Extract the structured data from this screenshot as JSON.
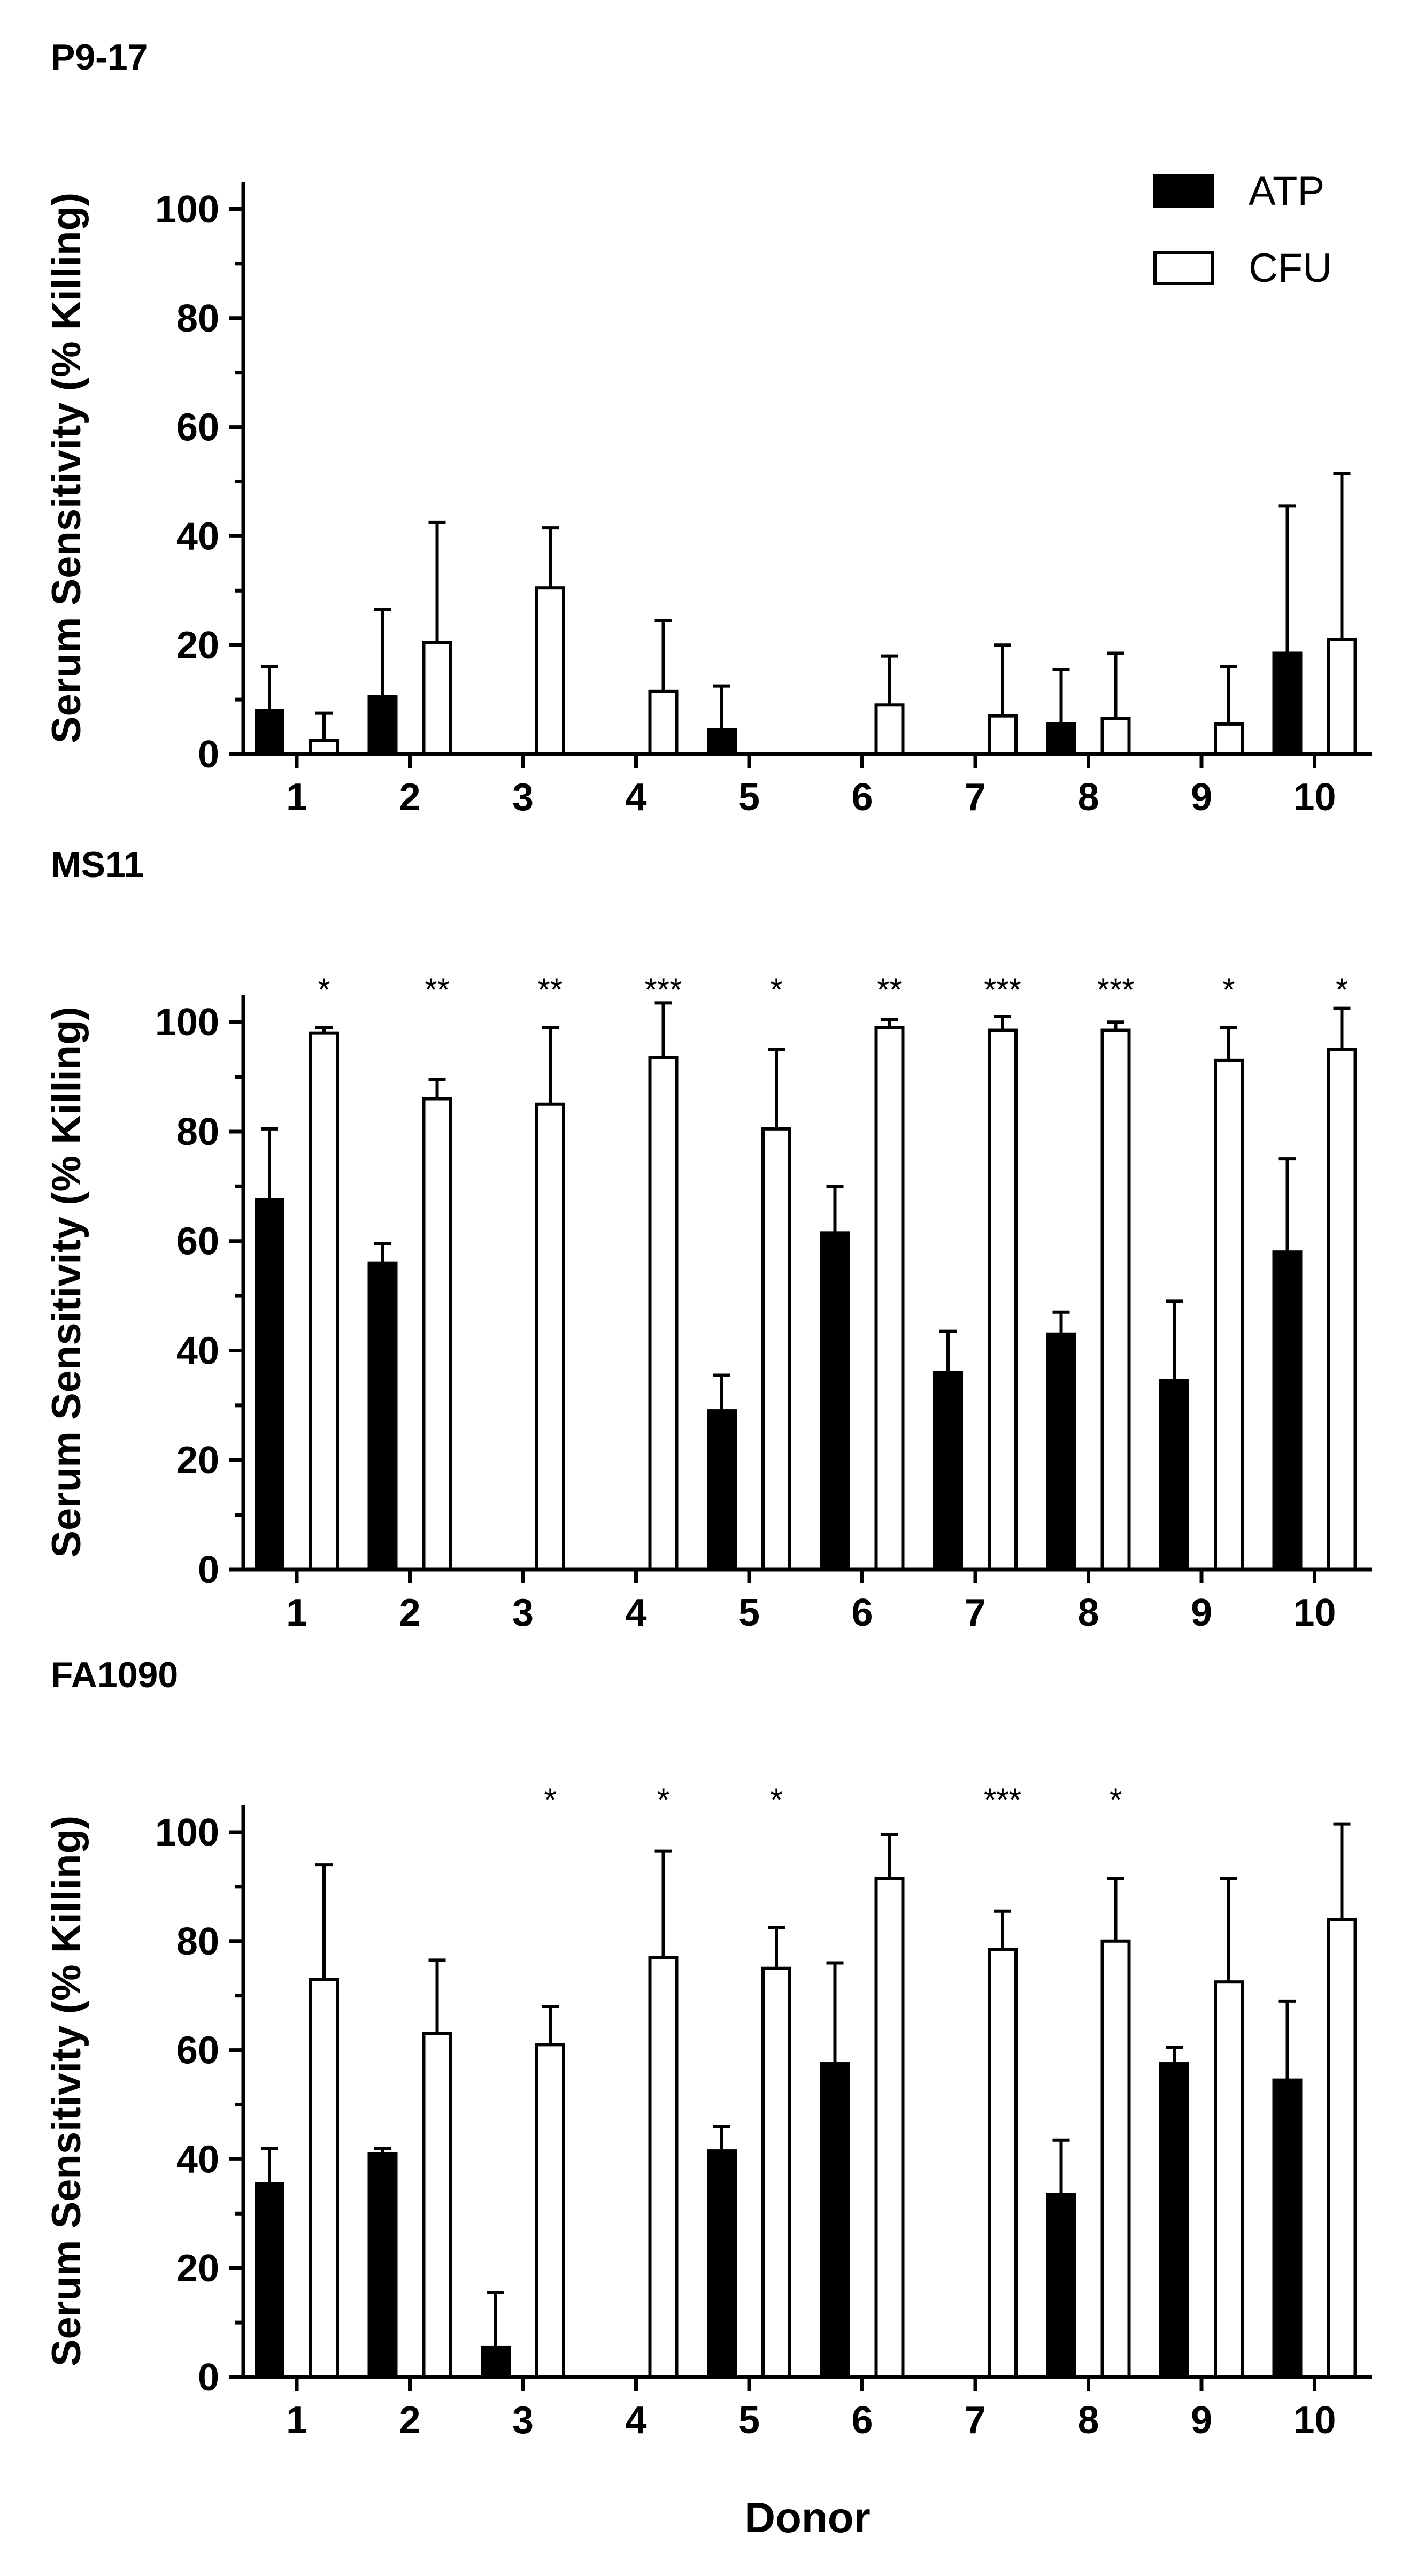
{
  "legend": [
    {
      "name": "ATP",
      "fill": "#000000"
    },
    {
      "name": "CFU",
      "fill": "#ffffff"
    }
  ],
  "xlabel": "Donor",
  "chart_data": [
    {
      "type": "bar",
      "title": "P9-17",
      "xlabel": "",
      "ylabel": "Serum Sensitivity (% Killing)",
      "ylim": [
        0,
        105
      ],
      "yticks": [
        0,
        20,
        40,
        60,
        80,
        100
      ],
      "categories": [
        "1",
        "2",
        "3",
        "4",
        "5",
        "6",
        "7",
        "8",
        "9",
        "10"
      ],
      "series": [
        {
          "name": "ATP",
          "values": [
            8,
            10.5,
            0,
            0,
            4.5,
            0,
            0,
            5.5,
            0,
            18.5
          ],
          "errors": [
            8,
            16,
            0,
            0,
            8,
            0,
            0,
            10,
            0,
            27
          ]
        },
        {
          "name": "CFU",
          "values": [
            2.5,
            20.5,
            30.5,
            11.5,
            0,
            9,
            7,
            6.5,
            5.5,
            21
          ],
          "errors": [
            5,
            22,
            11,
            13,
            0,
            9,
            13,
            12,
            10.5,
            30.5
          ]
        }
      ],
      "significance": [
        "",
        "",
        "",
        "",
        "",
        "",
        "",
        "",
        "",
        ""
      ]
    },
    {
      "type": "bar",
      "title": "MS11",
      "xlabel": "",
      "ylabel": "Serum Sensitivity (% Killing)",
      "ylim": [
        0,
        105
      ],
      "yticks": [
        0,
        20,
        40,
        60,
        80,
        100
      ],
      "categories": [
        "1",
        "2",
        "3",
        "4",
        "5",
        "6",
        "7",
        "8",
        "9",
        "10"
      ],
      "series": [
        {
          "name": "ATP",
          "values": [
            67.5,
            56,
            0,
            0,
            29,
            61.5,
            36,
            43,
            34.5,
            58
          ],
          "errors": [
            13,
            3.5,
            0,
            0,
            6.5,
            8.5,
            7.5,
            4,
            14.5,
            17
          ]
        },
        {
          "name": "CFU",
          "values": [
            98,
            86,
            85,
            93.5,
            80.5,
            99,
            98.5,
            98.5,
            93,
            95
          ],
          "errors": [
            1,
            3.5,
            14,
            10,
            14.5,
            1.5,
            2.5,
            1.5,
            6,
            7.5
          ]
        }
      ],
      "significance": [
        "*",
        "**",
        "**",
        "***",
        "*",
        "**",
        "***",
        "***",
        "*",
        "*"
      ]
    },
    {
      "type": "bar",
      "title": "FA1090",
      "xlabel": "Donor",
      "ylabel": "Serum Sensitivity (% Killing)",
      "ylim": [
        0,
        105
      ],
      "yticks": [
        0,
        20,
        40,
        60,
        80,
        100
      ],
      "categories": [
        "1",
        "2",
        "3",
        "4",
        "5",
        "6",
        "7",
        "8",
        "9",
        "10"
      ],
      "series": [
        {
          "name": "ATP",
          "values": [
            35.5,
            41,
            5.5,
            0,
            41.5,
            57.5,
            0,
            33.5,
            57.5,
            54.5
          ],
          "errors": [
            6.5,
            1,
            10,
            0,
            4.5,
            18.5,
            0,
            10,
            3,
            14.5
          ]
        },
        {
          "name": "CFU",
          "values": [
            73,
            63,
            61,
            77,
            75,
            91.5,
            78.5,
            80,
            72.5,
            84
          ],
          "errors": [
            21,
            13.5,
            7,
            19.5,
            7.5,
            8,
            7,
            11.5,
            19,
            17.5
          ]
        }
      ],
      "significance": [
        "",
        "",
        "*",
        "*",
        "*",
        "",
        "***",
        "*",
        "",
        ""
      ]
    }
  ]
}
